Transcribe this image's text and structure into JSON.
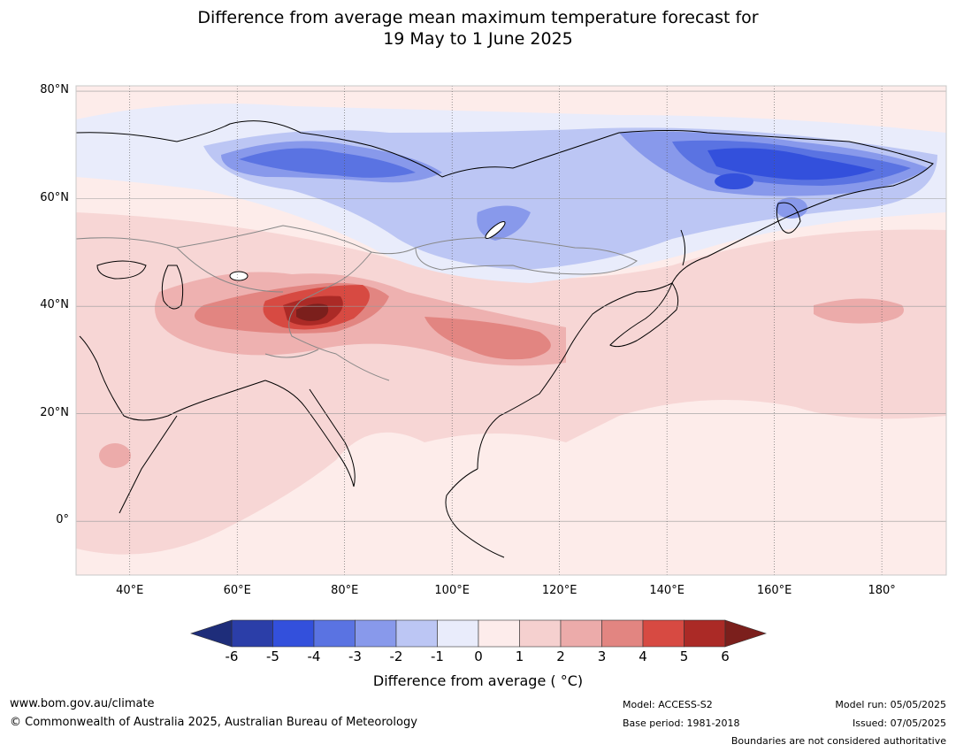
{
  "title": {
    "line1": "Difference from average mean maximum temperature forecast for",
    "line2": "19 May to 1 June 2025"
  },
  "map": {
    "lat_labels": [
      "80°N",
      "60°N",
      "40°N",
      "20°N",
      "0°"
    ],
    "lon_labels": [
      "40°E",
      "60°E",
      "80°E",
      "100°E",
      "120°E",
      "140°E",
      "160°E",
      "180°"
    ],
    "extent": {
      "lon_min": 30,
      "lon_max": 192,
      "lat_min": -10,
      "lat_max": 81
    }
  },
  "colorbar": {
    "ticks": [
      "-6",
      "-5",
      "-4",
      "-3",
      "-2",
      "-1",
      "0",
      "1",
      "2",
      "3",
      "4",
      "5",
      "6"
    ],
    "colors": [
      "#2b3ea8",
      "#3350dc",
      "#5a73e2",
      "#8899eb",
      "#bcc6f4",
      "#e9ecfb",
      "#fdeceb",
      "#f5d0cf",
      "#ecabaa",
      "#e28581",
      "#d74a42",
      "#ab2a26"
    ],
    "under_color": "#1e2d7a",
    "over_color": "#7b1f1c",
    "label": "Difference from average ( °C)"
  },
  "footer": {
    "website": "www.bom.gov.au/climate",
    "copyright": "© Commonwealth of Australia 2025, Australian Bureau of Meteorology",
    "model": "Model: ACCESS-S2",
    "base_period": "Base period: 1981-2018",
    "model_run": "Model run: 05/05/2025",
    "issued": "Issued: 07/05/2025",
    "disclaimer": "Boundaries are not considered authoritative"
  }
}
